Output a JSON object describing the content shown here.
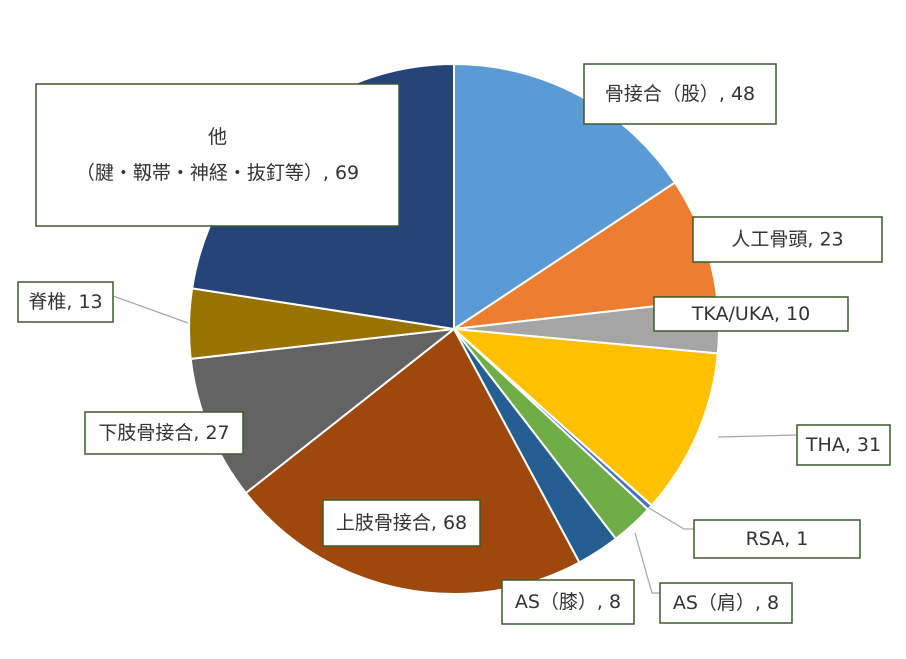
{
  "chart_data": {
    "type": "pie",
    "start_angle_deg": 0,
    "direction": "clockwise",
    "slices": [
      {
        "label_lines": [
          "骨接合（股）, 48"
        ],
        "category": "骨接合（股）",
        "value": 48,
        "color": "#5b9bd5"
      },
      {
        "label_lines": [
          "人工骨頭, 23"
        ],
        "category": "人工骨頭",
        "value": 23,
        "color": "#ed7d31"
      },
      {
        "label_lines": [
          "TKA/UKA, 10"
        ],
        "category": "TKA/UKA",
        "value": 10,
        "color": "#a5a5a5"
      },
      {
        "label_lines": [
          "THA, 31"
        ],
        "category": "THA",
        "value": 31,
        "color": "#ffc000"
      },
      {
        "label_lines": [
          "RSA, 1"
        ],
        "category": "RSA",
        "value": 1,
        "color": "#4472c4"
      },
      {
        "label_lines": [
          "AS（肩）, 8"
        ],
        "category": "AS（肩）",
        "value": 8,
        "color": "#70ad47"
      },
      {
        "label_lines": [
          "AS（膝）, 8"
        ],
        "category": "AS（膝）",
        "value": 8,
        "color": "#255e91"
      },
      {
        "label_lines": [
          "上肢骨接合, 68"
        ],
        "category": "上肢骨接合",
        "value": 68,
        "color": "#9e480e",
        "label_fill": "#d5a38a"
      },
      {
        "label_lines": [
          "下肢骨接合, 27"
        ],
        "category": "下肢骨接合",
        "value": 27,
        "color": "#636363"
      },
      {
        "label_lines": [
          "脊椎, 13"
        ],
        "category": "脊椎",
        "value": 13,
        "color": "#997300"
      },
      {
        "label_lines": [
          "他",
          "（腱・靱帯・神経・抜釘等）, 69"
        ],
        "category": "他（腱・靱帯・神経・抜釘等）",
        "value": 69,
        "color": "#264478",
        "label_fill": "rgba(255,255,255,0.5)"
      }
    ]
  }
}
